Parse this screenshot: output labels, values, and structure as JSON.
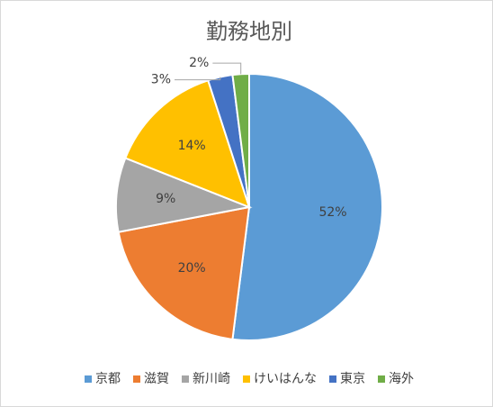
{
  "chart_data": {
    "type": "pie",
    "title": "勤務地別",
    "categories": [
      "京都",
      "滋賀",
      "新川崎",
      "けいはんな",
      "東京",
      "海外"
    ],
    "values": [
      52,
      20,
      9,
      14,
      3,
      2
    ],
    "value_labels": [
      "52%",
      "20%",
      "9%",
      "14%",
      "3%",
      "2%"
    ],
    "colors": [
      "#5b9bd5",
      "#ed7d31",
      "#a5a5a5",
      "#ffc000",
      "#4472c4",
      "#70ad47"
    ],
    "legend": "bottom"
  }
}
